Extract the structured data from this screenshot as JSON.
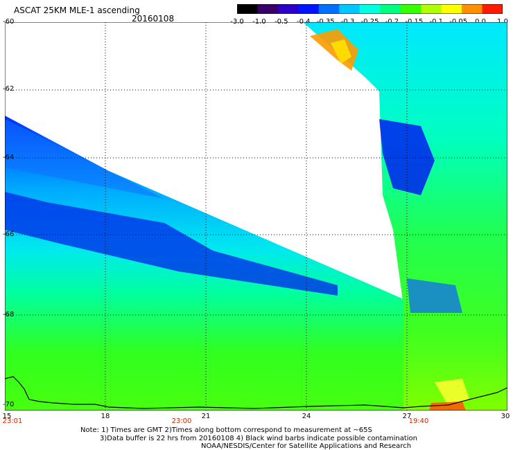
{
  "header": {
    "title": "ASCAT 25KM MLE-1 ascending",
    "date": "20160108"
  },
  "legend": {
    "ticks": [
      "-3.0",
      "-1.0",
      "-0.5",
      "-0.4",
      "-0.35",
      "-0.3",
      "-0.25",
      "-0.2",
      "-0.15",
      "-0.1",
      "-0.05",
      "0.0",
      "1.0"
    ],
    "colors": [
      "#000000",
      "#3a006a",
      "#2a00c8",
      "#0014ff",
      "#0070ff",
      "#00c8ff",
      "#00ffe0",
      "#00ff80",
      "#38ff00",
      "#b0ff00",
      "#ffff00",
      "#ff9000",
      "#ff1a00"
    ]
  },
  "axes": {
    "y_ticks": [
      "-60",
      "-62",
      "-64",
      "-66",
      "-68",
      "-70"
    ],
    "x_ticks": [
      "15",
      "18",
      "21",
      "24",
      "27",
      "30"
    ],
    "time_labels": [
      "23:01",
      "23:00",
      "19:40"
    ]
  },
  "notes": {
    "line1": "Note: 1) Times are GMT 2)Times along bottom correspond to measurement at ~65S",
    "line2": "3)Data buffer is 22 hrs from 20160108 4) Black wind barbs indicate possible contamination",
    "line3": "NOAA/NESDIS/Center for Satellite Applications and Research"
  }
}
